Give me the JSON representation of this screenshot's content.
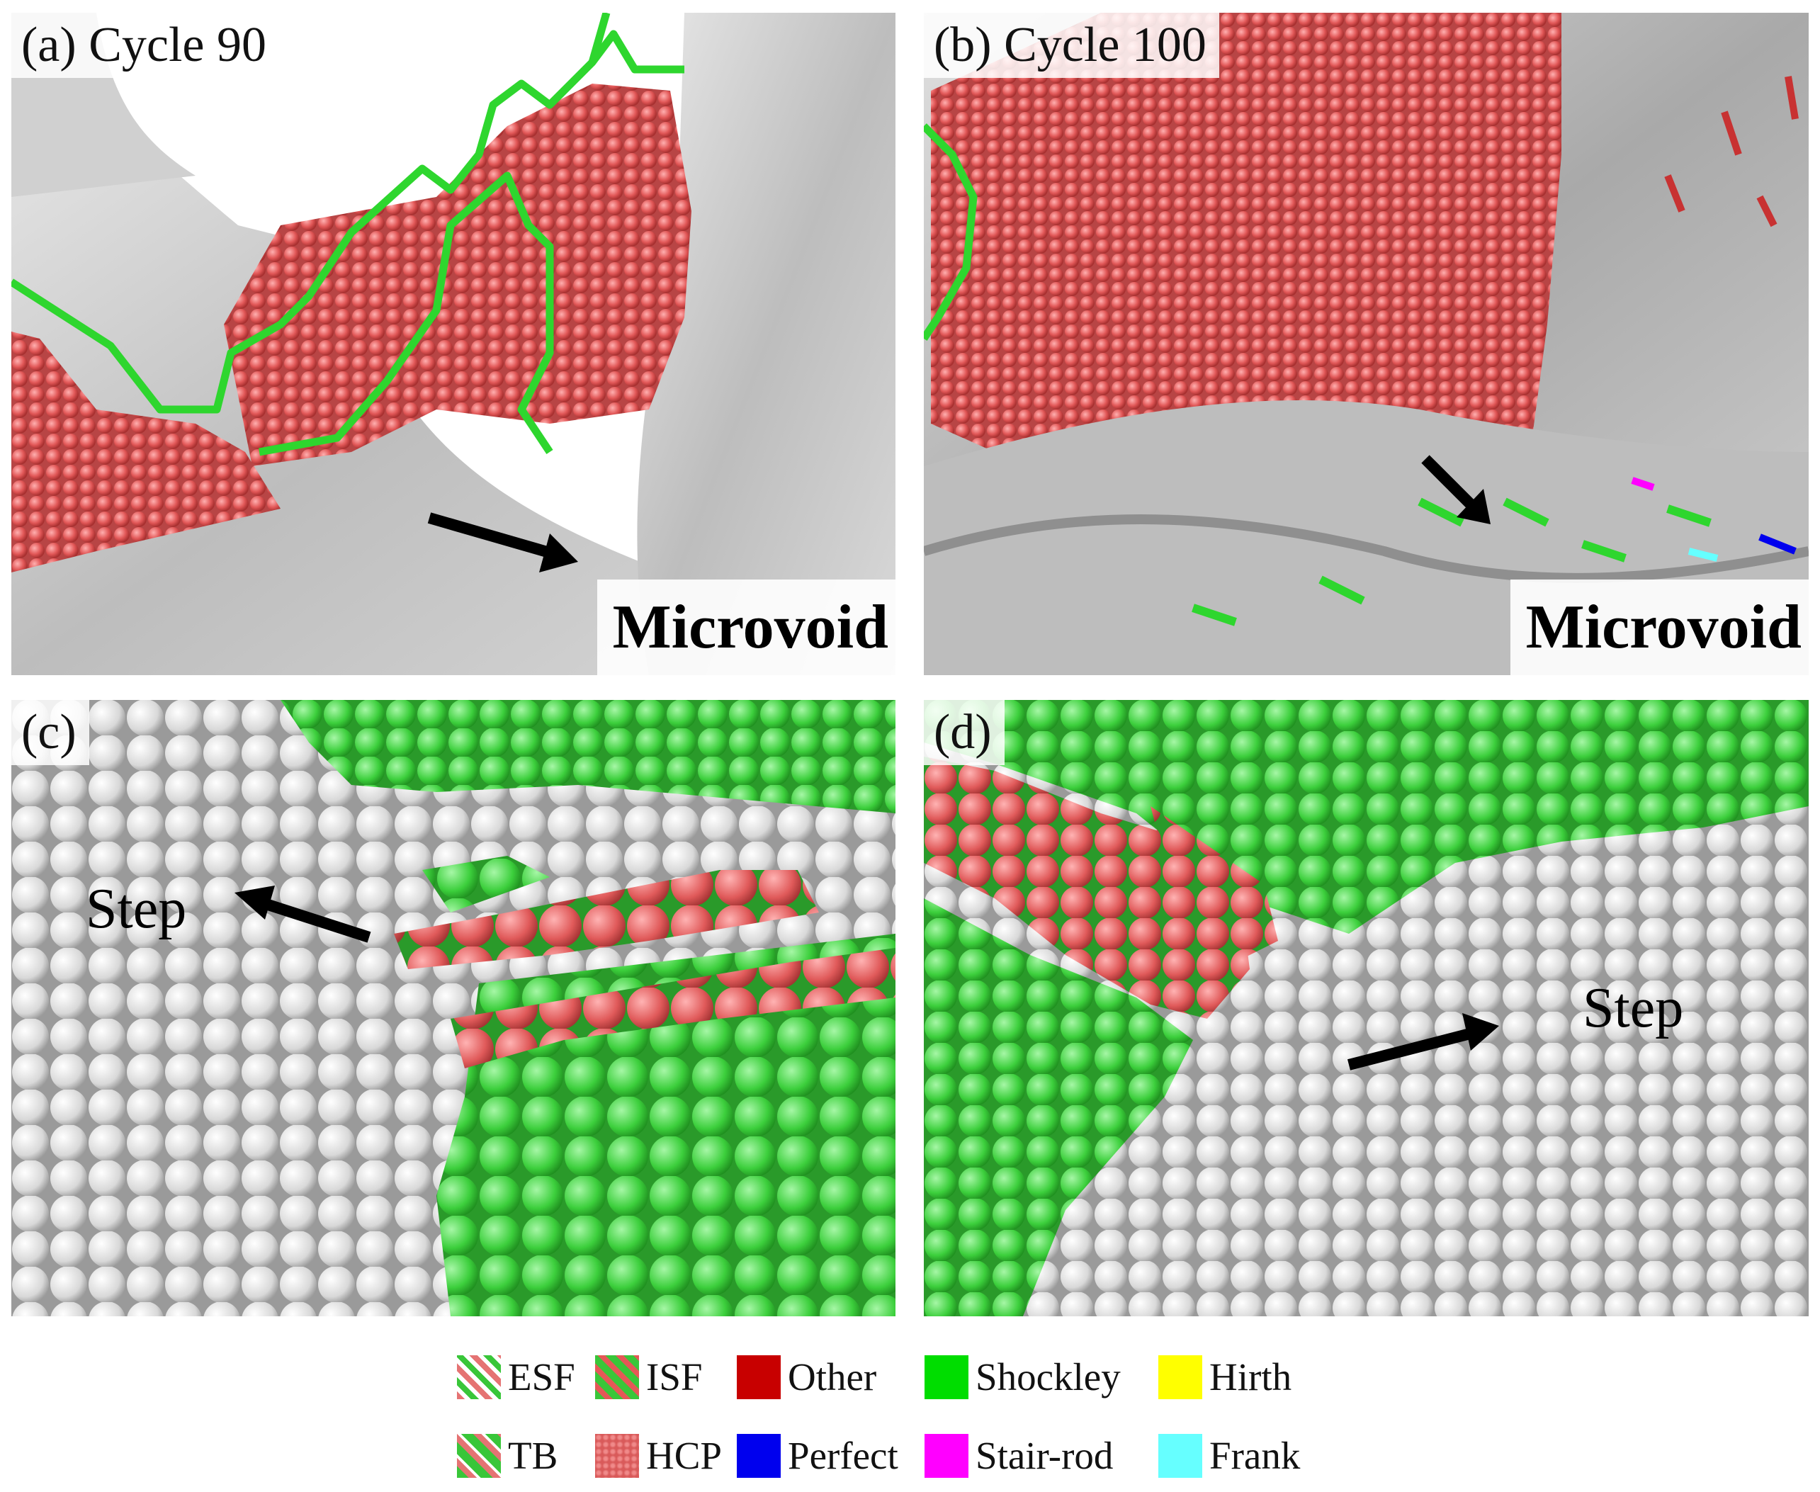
{
  "panels": {
    "a": {
      "label": "(a) Cycle 90",
      "annotation": "Microvoid"
    },
    "b": {
      "label": "(b) Cycle 100",
      "annotation": "Microvoid"
    },
    "c": {
      "label": "(c)",
      "annotation": "Step"
    },
    "d": {
      "label": "(d)",
      "annotation": "Step"
    }
  },
  "legend": {
    "esf": "ESF",
    "isf": "ISF",
    "other": "Other",
    "shockley": "Shockley",
    "hirth": "Hirth",
    "tb": "TB",
    "hcp": "HCP",
    "perfect": "Perfect",
    "stair_rod": "Stair-rod",
    "frank": "Frank"
  },
  "colors": {
    "other": "#c80000",
    "shockley": "#00dd00",
    "hirth": "#ffff00",
    "perfect": "#0000ee",
    "stair_rod": "#ff00ff",
    "frank": "#66ffff",
    "hcp_atom": "#e05a5a",
    "fcc_atom": "#3ed43e",
    "other_atom": "#e8e8e8",
    "surface": "#c9c9c9"
  }
}
